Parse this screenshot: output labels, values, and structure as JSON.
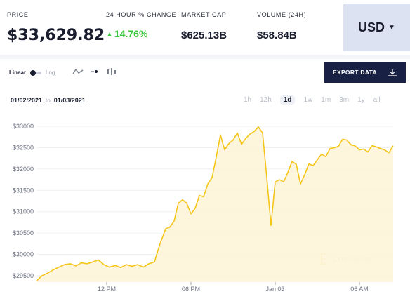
{
  "stats": {
    "price_label": "PRICE",
    "price_value": "$33,629.82",
    "change_label": "24 HOUR % CHANGE",
    "change_value": "14.76%",
    "change_color": "#3cc83c",
    "marketcap_label": "MARKET CAP",
    "marketcap_value": "$625.13B",
    "volume_label": "VOLUME (24H)",
    "volume_value": "$58.84B"
  },
  "currency": {
    "label": "USD"
  },
  "controls": {
    "scale_linear": "Linear",
    "scale_log": "Log",
    "export_label": "EXPORT DATA",
    "date_from": "01/02/2021",
    "date_to_word": "to",
    "date_to": "01/03/2021",
    "ranges": [
      "1h",
      "12h",
      "1d",
      "1w",
      "1m",
      "3m",
      "1y",
      "all"
    ],
    "active_range": "1d"
  },
  "watermark": "coindesk",
  "chart_data": {
    "type": "area",
    "line_color": "#f5c518",
    "fill_color": "#fdf3d6",
    "y_ticks": [
      29500,
      30000,
      30500,
      31000,
      31500,
      32000,
      32500,
      33000
    ],
    "y_tick_labels": [
      "$29500",
      "$30000",
      "$30500",
      "$31000",
      "$31500",
      "$32000",
      "$32500",
      "$33000"
    ],
    "ylim": [
      29350,
      33200
    ],
    "x_tick_labels": [
      "12 PM",
      "06 PM",
      "Jan 03",
      "06 AM"
    ],
    "x_tick_hours": [
      12,
      18,
      24,
      30
    ],
    "xlim_hours": [
      7.0,
      32.4
    ],
    "x_hours": [
      7.0,
      7.4,
      7.8,
      8.2,
      8.6,
      9.0,
      9.4,
      9.8,
      10.2,
      10.6,
      11.0,
      11.4,
      11.8,
      12.2,
      12.6,
      13.0,
      13.4,
      13.8,
      14.2,
      14.6,
      15.0,
      15.4,
      15.8,
      16.2,
      16.5,
      16.8,
      17.1,
      17.4,
      17.7,
      18.0,
      18.3,
      18.6,
      18.9,
      19.2,
      19.5,
      19.8,
      20.1,
      20.4,
      20.7,
      21.0,
      21.3,
      21.6,
      21.9,
      22.2,
      22.5,
      22.8,
      23.1,
      23.4,
      23.7,
      24.0,
      24.3,
      24.6,
      24.9,
      25.2,
      25.5,
      25.8,
      26.1,
      26.4,
      26.7,
      27.0,
      27.3,
      27.6,
      27.9,
      28.2,
      28.5,
      28.8,
      29.1,
      29.4,
      29.7,
      30.0,
      30.3,
      30.6,
      30.9,
      31.2,
      31.5,
      31.8,
      32.1,
      32.4
    ],
    "values": [
      29380,
      29500,
      29560,
      29640,
      29700,
      29760,
      29780,
      29730,
      29800,
      29780,
      29820,
      29870,
      29760,
      29700,
      29740,
      29690,
      29760,
      29720,
      29760,
      29700,
      29780,
      29820,
      30250,
      30600,
      30640,
      30780,
      31200,
      31280,
      31200,
      30950,
      31080,
      31380,
      31350,
      31650,
      31800,
      32280,
      32800,
      32450,
      32600,
      32680,
      32850,
      32580,
      32720,
      32820,
      32880,
      32990,
      32850,
      31800,
      30680,
      31700,
      31750,
      31700,
      31920,
      32180,
      32110,
      31650,
      31870,
      32120,
      32080,
      32220,
      32350,
      32290,
      32480,
      32500,
      32530,
      32700,
      32680,
      32570,
      32540,
      32450,
      32470,
      32400,
      32550,
      32520,
      32480,
      32450,
      32380,
      32550
    ]
  }
}
